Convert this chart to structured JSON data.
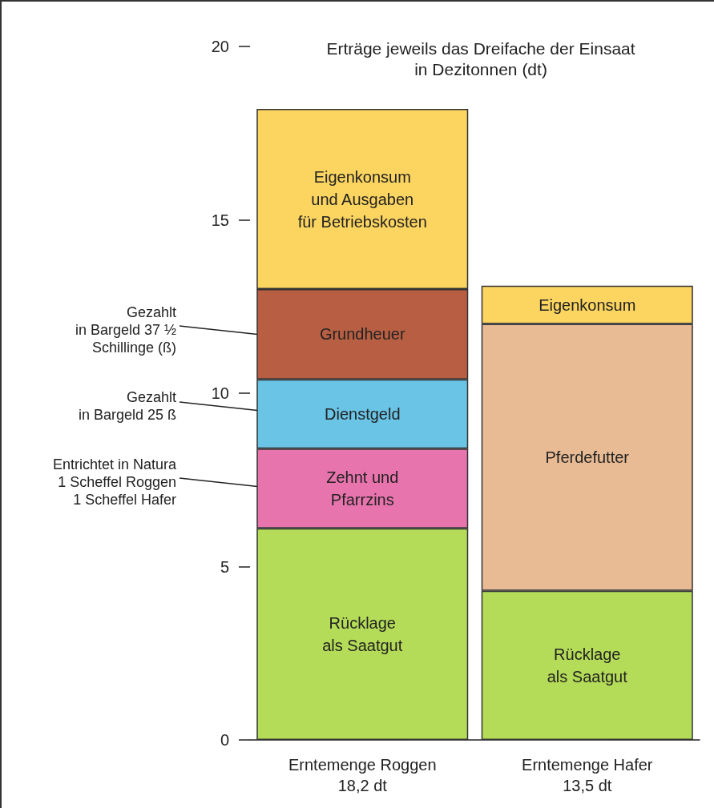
{
  "chart_data": {
    "type": "bar",
    "title": "Erträge jeweils das Dreifache der Einsaat\nin Dezitonnen (dt)",
    "categories": [
      "Erntemenge Roggen\n18,2 dt",
      "Erntemenge Hafer\n13,5 dt"
    ],
    "stacked": true,
    "ylim": [
      0,
      20
    ],
    "yticks": [
      0,
      5,
      10,
      15,
      20
    ],
    "series": [
      {
        "name": "Rücklage\nals Saatgut",
        "color": "#b5dc58",
        "values": [
          6.1,
          4.3
        ]
      },
      {
        "name": "Zehnt und\nPfarrzins",
        "color": "#e874ae",
        "values": [
          2.3,
          null
        ]
      },
      {
        "name": "Pferdefutter",
        "color": "#e8bb94",
        "values": [
          null,
          7.7
        ]
      },
      {
        "name": "Dienstgeld",
        "color": "#6ac4e6",
        "values": [
          2.0,
          null
        ]
      },
      {
        "name": "Grundheuer",
        "color": "#b85f43",
        "values": [
          2.6,
          null
        ]
      },
      {
        "name": "Eigenkonsum\nund Ausgaben\nfür Betriebskosten",
        "color": "#fcd560",
        "values": [
          5.2,
          null
        ]
      },
      {
        "name": "Eigenkonsum",
        "color": "#fcd560",
        "values": [
          null,
          1.1
        ]
      }
    ],
    "annotations": [
      "Gezahlt\nin Bargeld 37 ½\nSchillinge (ß)",
      "Gezahlt\nin Bargeld 25 ß",
      "Entrichtet in Natura\n1 Scheffel Roggen\n1 Scheffel Hafer"
    ]
  }
}
